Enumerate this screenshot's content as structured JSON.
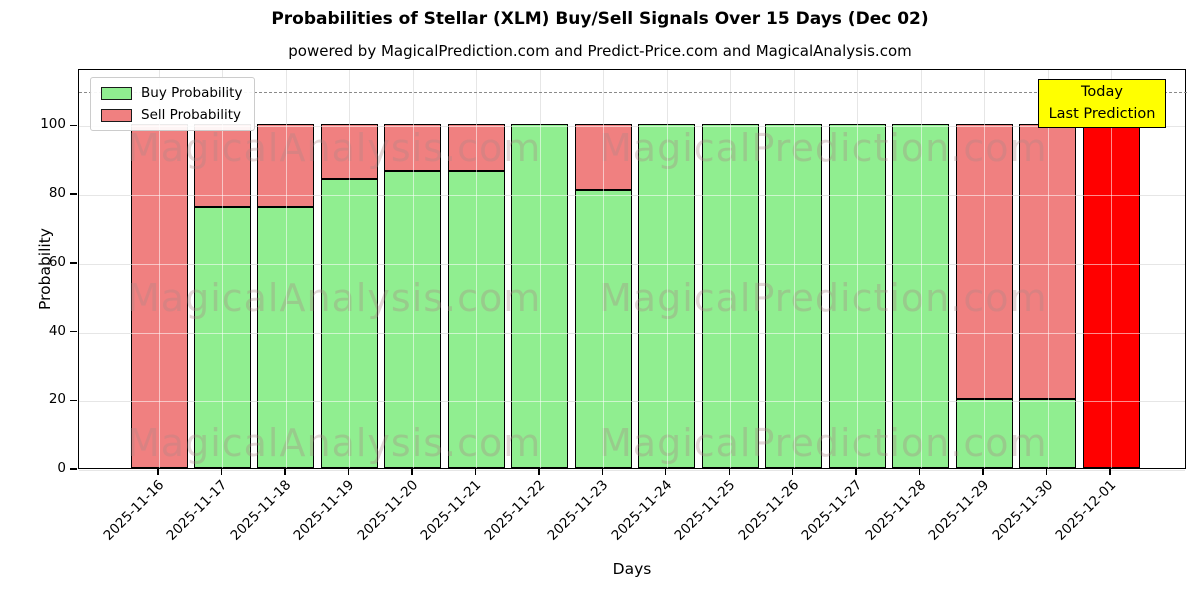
{
  "chart_data": {
    "type": "bar",
    "stacked": true,
    "title": "Probabilities of Stellar (XLM) Buy/Sell Signals Over 15 Days (Dec 02)",
    "subtitle": "powered by MagicalPrediction.com and Predict-Price.com and MagicalAnalysis.com",
    "xlabel": "Days",
    "ylabel": "Probability",
    "categories": [
      "2025-11-16",
      "2025-11-17",
      "2025-11-18",
      "2025-11-19",
      "2025-11-20",
      "2025-11-21",
      "2025-11-22",
      "2025-11-23",
      "2025-11-24",
      "2025-11-25",
      "2025-11-26",
      "2025-11-27",
      "2025-11-28",
      "2025-11-29",
      "2025-11-30",
      "2025-12-01"
    ],
    "series": [
      {
        "name": "Buy Probability",
        "color": "#90ee90",
        "values": [
          0,
          76,
          76,
          84,
          86.5,
          86.5,
          100,
          81,
          100,
          100,
          100,
          100,
          100,
          20,
          20,
          0
        ]
      },
      {
        "name": "Sell Probability",
        "color": "#f08080",
        "values": [
          100,
          24,
          24,
          16,
          13.5,
          13.5,
          0,
          19,
          0,
          0,
          0,
          0,
          0,
          80,
          80,
          100
        ]
      }
    ],
    "highlight": {
      "index": 15,
      "category": "2025-12-01",
      "color": "#ff0000"
    },
    "yticks": [
      0,
      20,
      40,
      60,
      80,
      100
    ],
    "ylim": [
      0,
      116.4
    ],
    "grid": true,
    "dashed_guide_y": 110,
    "legend_position": "upper left",
    "annotation_box": {
      "lines": [
        "Today",
        "Last Prediction"
      ],
      "bg_color": "#ffff00"
    },
    "watermarks": {
      "left_text": "MagicalAnalysis.com",
      "right_text": "MagicalPrediction.com",
      "rows": 3
    }
  }
}
